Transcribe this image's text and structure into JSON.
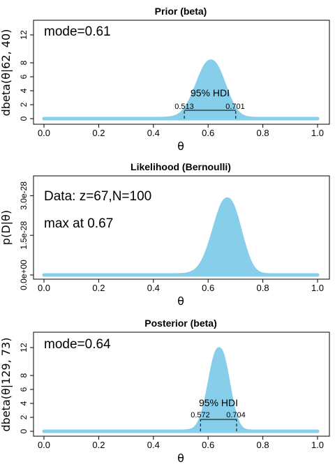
{
  "chart_data": [
    {
      "type": "area",
      "title": "Prior (beta)",
      "xlabel": "θ",
      "ylabel": "dbeta(θ|62, 40)",
      "series": [
        {
          "name": "",
          "distribution": "beta",
          "a": 62,
          "b": 40,
          "color": "#87ceeb"
        }
      ],
      "xlim": [
        0,
        1
      ],
      "ylim": [
        0,
        13
      ],
      "xticks": [
        "0.0",
        "0.2",
        "0.4",
        "0.6",
        "0.8",
        "1.0"
      ],
      "yticks": [
        "0",
        "2",
        "4",
        "6",
        "8",
        "12"
      ],
      "annotations": [
        "mode=0.61"
      ],
      "hdi": {
        "label": "95% HDI",
        "low": "0.513",
        "high": "0.701",
        "level": 1.2
      }
    },
    {
      "type": "area",
      "title": "Likelihood (Bernoulli)",
      "xlabel": "θ",
      "ylabel": "p(D|θ)",
      "series": [
        {
          "name": "",
          "distribution": "bernoulli",
          "z": 67,
          "N": 100,
          "color": "#87ceeb"
        }
      ],
      "xlim": [
        0,
        1
      ],
      "ylim": [
        0,
        3.3e-28
      ],
      "xticks": [
        "0.0",
        "0.2",
        "0.4",
        "0.6",
        "0.8",
        "1.0"
      ],
      "yticks": [
        "0.0e+00",
        "1.5e-28",
        "3.0e-28"
      ],
      "annotations": [
        "Data: z=67,N=100",
        "max at 0.67"
      ]
    },
    {
      "type": "area",
      "title": "Posterior (beta)",
      "xlabel": "θ",
      "ylabel": "dbeta(θ|129, 73)",
      "series": [
        {
          "name": "",
          "distribution": "beta",
          "a": 129,
          "b": 73,
          "color": "#87ceeb"
        }
      ],
      "xlim": [
        0,
        1
      ],
      "ylim": [
        0,
        13
      ],
      "xticks": [
        "0.0",
        "0.2",
        "0.4",
        "0.6",
        "0.8",
        "1.0"
      ],
      "yticks": [
        "0",
        "2",
        "4",
        "6",
        "8",
        "12"
      ],
      "annotations": [
        "mode=0.64"
      ],
      "hdi": {
        "label": "95% HDI",
        "low": "0.572",
        "high": "0.704",
        "level": 1.7
      }
    }
  ]
}
